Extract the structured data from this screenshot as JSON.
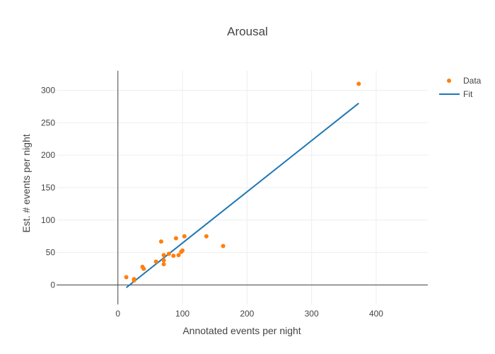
{
  "chart_data": {
    "type": "scatter",
    "title": "Arousal",
    "xlabel": "Annotated events per night",
    "ylabel": "Est. # events per night",
    "xlim": [
      -95,
      480
    ],
    "ylim": [
      -30,
      330
    ],
    "xticks": [
      0,
      100,
      200,
      300,
      400
    ],
    "yticks": [
      0,
      50,
      100,
      150,
      200,
      250,
      300
    ],
    "grid": true,
    "legend_position": "top-right",
    "series": [
      {
        "name": "Data",
        "mode": "markers",
        "color": "#ff7f0e",
        "points": [
          {
            "x": 13,
            "y": 12
          },
          {
            "x": 25,
            "y": 9
          },
          {
            "x": 25,
            "y": 7
          },
          {
            "x": 38,
            "y": 28
          },
          {
            "x": 40,
            "y": 25
          },
          {
            "x": 59,
            "y": 36
          },
          {
            "x": 67,
            "y": 67
          },
          {
            "x": 71,
            "y": 46
          },
          {
            "x": 71,
            "y": 38
          },
          {
            "x": 71,
            "y": 32
          },
          {
            "x": 79,
            "y": 48
          },
          {
            "x": 86,
            "y": 45
          },
          {
            "x": 90,
            "y": 72
          },
          {
            "x": 94,
            "y": 46
          },
          {
            "x": 98,
            "y": 51
          },
          {
            "x": 100,
            "y": 53
          },
          {
            "x": 103,
            "y": 75
          },
          {
            "x": 137,
            "y": 75
          },
          {
            "x": 163,
            "y": 60
          },
          {
            "x": 373,
            "y": 310
          }
        ]
      },
      {
        "name": "Fit",
        "mode": "lines",
        "color": "#1f77b4",
        "points": [
          {
            "x": 13,
            "y": -4
          },
          {
            "x": 373,
            "y": 280
          }
        ]
      }
    ]
  }
}
